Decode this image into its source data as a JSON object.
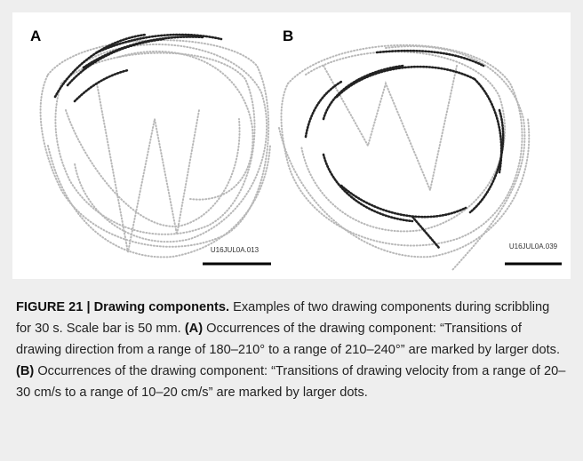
{
  "figure": {
    "panels": [
      {
        "label": "A",
        "file_id": "U16JUL0A.013"
      },
      {
        "label": "B",
        "file_id": "U16JUL0A.039"
      }
    ],
    "caption": {
      "label": "FIGURE 21 | Drawing components.",
      "intro": "Examples of two drawing components during scribbling for 30 s. Scale bar is 50 mm.",
      "part_a_label": "(A)",
      "part_a_text": "Occurrences of the drawing component: “Transitions of drawing direction from a range of 180–210° to a range of 210–240°” are marked by larger dots.",
      "part_b_label": "(B)",
      "part_b_text": "Occurrences of the drawing component: “Transitions of drawing velocity from a range of 20–30 cm/s to a range of 10–20 cm/s” are marked by larger dots."
    }
  }
}
